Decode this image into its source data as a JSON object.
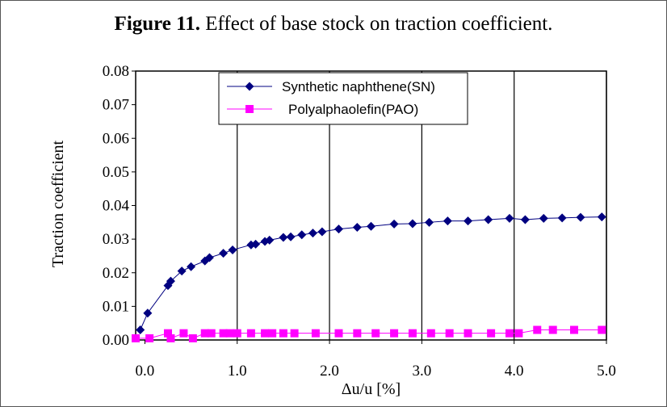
{
  "figure": {
    "number_label": "Figure 11.",
    "title_text": " Effect of base stock on traction coefficient."
  },
  "chart_data": {
    "type": "line",
    "title": "Figure 11. Effect of base stock on traction coefficient.",
    "xlabel": "Δu/u  [%]",
    "ylabel": "Traction coefficient",
    "xlim": [
      -0.1,
      5.0
    ],
    "ylim": [
      0,
      0.08
    ],
    "xticks": [
      "0.0",
      "1.0",
      "2.0",
      "3.0",
      "4.0",
      "5.0"
    ],
    "xtick_values": [
      0,
      1,
      2,
      3,
      4,
      5
    ],
    "yticks": [
      "0.00",
      "0.01",
      "0.02",
      "0.03",
      "0.04",
      "0.05",
      "0.06",
      "0.07",
      "0.08"
    ],
    "ytick_values": [
      0,
      0.01,
      0.02,
      0.03,
      0.04,
      0.05,
      0.06,
      0.07,
      0.08
    ],
    "grid": "vertical",
    "legend_position": "top-center",
    "series": [
      {
        "name": "Synthetic naphthene(SN)",
        "color": "#000080",
        "marker": "diamond",
        "x": [
          -0.05,
          0.03,
          0.25,
          0.28,
          0.4,
          0.5,
          0.65,
          0.7,
          0.85,
          0.95,
          1.15,
          1.2,
          1.3,
          1.35,
          1.5,
          1.58,
          1.7,
          1.82,
          1.92,
          2.1,
          2.3,
          2.45,
          2.7,
          2.9,
          3.08,
          3.28,
          3.5,
          3.72,
          3.95,
          4.12,
          4.32,
          4.52,
          4.72,
          4.95
        ],
        "y": [
          0.003,
          0.008,
          0.0162,
          0.0175,
          0.0205,
          0.0218,
          0.0235,
          0.0245,
          0.0258,
          0.0268,
          0.0283,
          0.0285,
          0.0293,
          0.0297,
          0.0305,
          0.0307,
          0.0313,
          0.0318,
          0.0322,
          0.033,
          0.0335,
          0.0338,
          0.0345,
          0.0346,
          0.035,
          0.0354,
          0.0354,
          0.0358,
          0.0362,
          0.0358,
          0.0362,
          0.0363,
          0.0365,
          0.0366
        ]
      },
      {
        "name": "Polyalphaolefin(PAO)",
        "color": "#FF00FF",
        "marker": "square",
        "x": [
          -0.1,
          0.05,
          0.25,
          0.28,
          0.42,
          0.52,
          0.65,
          0.72,
          0.85,
          0.92,
          1.0,
          1.15,
          1.3,
          1.38,
          1.5,
          1.62,
          1.85,
          2.1,
          2.3,
          2.5,
          2.7,
          2.9,
          3.1,
          3.3,
          3.5,
          3.75,
          3.95,
          4.05,
          4.25,
          4.42,
          4.65,
          4.95
        ],
        "y": [
          0.0005,
          0.0005,
          0.002,
          0.0005,
          0.002,
          0.0005,
          0.002,
          0.002,
          0.002,
          0.002,
          0.002,
          0.002,
          0.002,
          0.002,
          0.002,
          0.002,
          0.002,
          0.002,
          0.002,
          0.002,
          0.002,
          0.002,
          0.002,
          0.002,
          0.002,
          0.002,
          0.002,
          0.002,
          0.003,
          0.003,
          0.003,
          0.003
        ]
      }
    ]
  }
}
